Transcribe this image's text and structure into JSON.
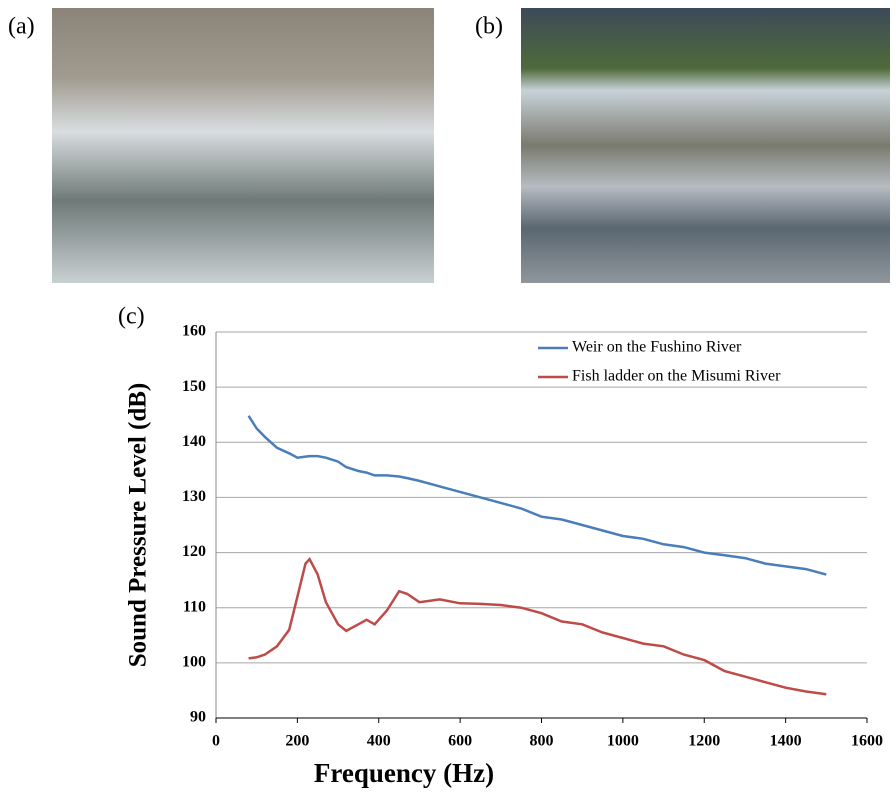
{
  "panel_labels": [
    "(a)",
    "(b)",
    "(c)"
  ],
  "chart_data": {
    "type": "line",
    "xlabel": "Frequency (Hz)",
    "ylabel": "Sound Pressure Level (dB)",
    "x": [
      80,
      100,
      120,
      150,
      180,
      200,
      220,
      230,
      250,
      270,
      300,
      320,
      350,
      370,
      390,
      420,
      450,
      470,
      500,
      550,
      600,
      650,
      700,
      750,
      800,
      850,
      900,
      950,
      1000,
      1050,
      1100,
      1150,
      1200,
      1250,
      1300,
      1350,
      1400,
      1450,
      1500
    ],
    "series": [
      {
        "name": "Weir on the Fushino River",
        "color": "#4a7ebb",
        "values": [
          144.8,
          142.5,
          141,
          139,
          138,
          137.2,
          137.4,
          137.5,
          137.5,
          137.2,
          136.5,
          135.5,
          134.8,
          134.5,
          134,
          134,
          133.8,
          133.5,
          133,
          132,
          131,
          130,
          129,
          128,
          126.5,
          126,
          125,
          124,
          123,
          122.5,
          121.5,
          121,
          120,
          119.5,
          119,
          118,
          117.5,
          117,
          116
        ]
      },
      {
        "name": "Fish ladder on the Misumi River",
        "color": "#be4b48",
        "values": [
          100.8,
          101,
          101.5,
          103,
          106,
          112,
          118,
          118.8,
          116,
          111,
          107,
          105.8,
          107,
          107.8,
          107,
          109.5,
          113,
          112.5,
          111,
          111.5,
          110.8,
          110.7,
          110.5,
          110,
          109,
          107.5,
          107,
          105.5,
          104.5,
          103.5,
          103,
          101.5,
          100.5,
          98.5,
          97.5,
          96.5,
          95.5,
          94.8,
          94.3
        ]
      }
    ],
    "xlim": [
      0,
      1600
    ],
    "xticks": [
      0,
      200,
      400,
      600,
      800,
      1000,
      1200,
      1400,
      1600
    ],
    "ylim": [
      90,
      160
    ],
    "yticks": [
      90,
      100,
      110,
      120,
      130,
      140,
      150,
      160
    ],
    "grid": true,
    "legend": "upper right"
  }
}
